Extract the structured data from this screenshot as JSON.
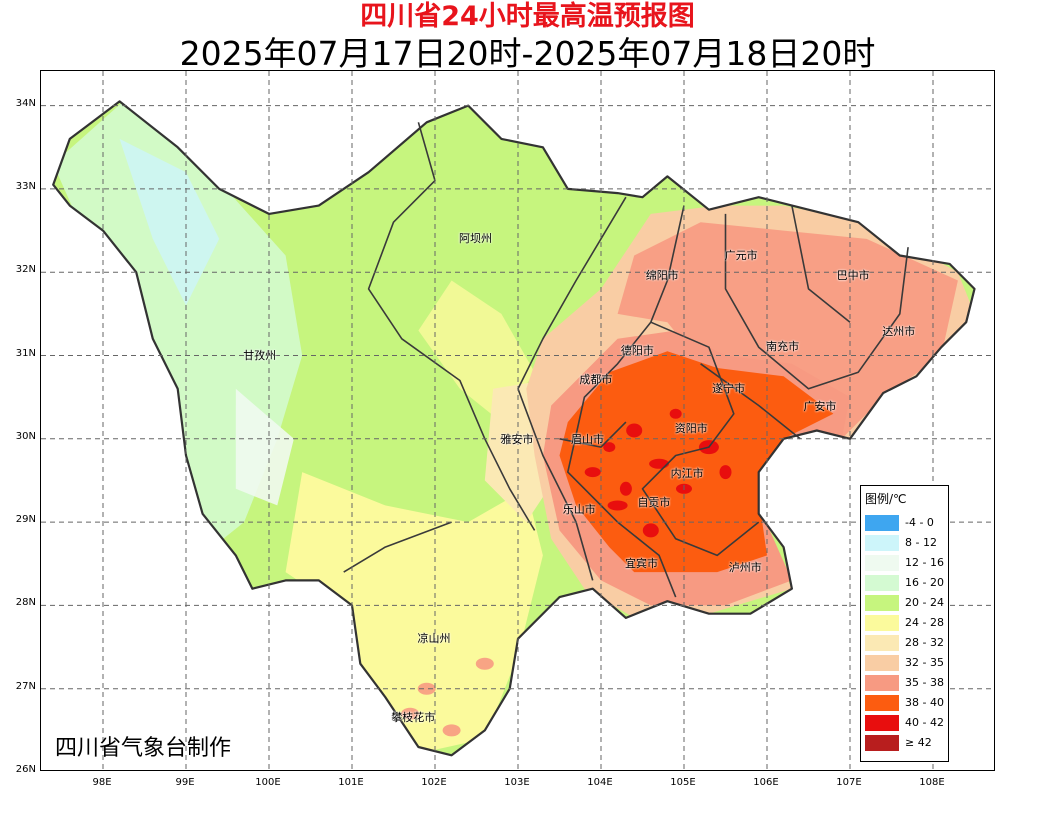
{
  "title": "四川省24小时最高温预报图",
  "subtitle": "2025年07月17日20时-2025年07月18日20时",
  "credit": "四川省气象台制作",
  "axes": {
    "x_ticks": [
      "98E",
      "99E",
      "100E",
      "101E",
      "102E",
      "103E",
      "104E",
      "105E",
      "106E",
      "107E",
      "108E"
    ],
    "y_ticks": [
      "34N",
      "33N",
      "32N",
      "31N",
      "30N",
      "29N",
      "28N",
      "27N",
      "26N"
    ],
    "lon_range": [
      97.3,
      108.8
    ],
    "lat_range": [
      26,
      34.4
    ]
  },
  "legend": {
    "title": "图例/℃",
    "items": [
      {
        "label": "-4 - 0",
        "color": "#3ea6f0"
      },
      {
        "label": "8 - 12",
        "color": "#cdf5fa"
      },
      {
        "label": "12 - 16",
        "color": "#effaf0"
      },
      {
        "label": "16 - 20",
        "color": "#d4fad2"
      },
      {
        "label": "20 - 24",
        "color": "#c6f57e"
      },
      {
        "label": "24 - 28",
        "color": "#fbfa9c"
      },
      {
        "label": "28 - 32",
        "color": "#fbe9b4"
      },
      {
        "label": "32 - 35",
        "color": "#f9cda4"
      },
      {
        "label": "35 - 38",
        "color": "#f79a82"
      },
      {
        "label": "38 - 40",
        "color": "#fc5c10"
      },
      {
        "label": "40 - 42",
        "color": "#e80e0e"
      },
      {
        "label": "≥ 42",
        "color": "#b81e1e"
      }
    ]
  },
  "cities": [
    {
      "name": "阿坝州",
      "lon": 102.5,
      "lat": 32.4
    },
    {
      "name": "甘孜州",
      "lon": 99.9,
      "lat": 31.0
    },
    {
      "name": "广元市",
      "lon": 105.7,
      "lat": 32.2
    },
    {
      "name": "巴中市",
      "lon": 107.05,
      "lat": 31.95
    },
    {
      "name": "绵阳市",
      "lon": 104.75,
      "lat": 31.95
    },
    {
      "name": "达州市",
      "lon": 107.6,
      "lat": 31.28
    },
    {
      "name": "德阳市",
      "lon": 104.45,
      "lat": 31.05
    },
    {
      "name": "南充市",
      "lon": 106.2,
      "lat": 31.1
    },
    {
      "name": "成都市",
      "lon": 103.95,
      "lat": 30.7
    },
    {
      "name": "遂宁市",
      "lon": 105.55,
      "lat": 30.6
    },
    {
      "name": "广安市",
      "lon": 106.65,
      "lat": 30.38
    },
    {
      "name": "资阳市",
      "lon": 105.1,
      "lat": 30.12
    },
    {
      "name": "雅安市",
      "lon": 103.0,
      "lat": 29.98
    },
    {
      "name": "眉山市",
      "lon": 103.85,
      "lat": 29.98
    },
    {
      "name": "内江市",
      "lon": 105.05,
      "lat": 29.58
    },
    {
      "name": "自贡市",
      "lon": 104.65,
      "lat": 29.23
    },
    {
      "name": "乐山市",
      "lon": 103.75,
      "lat": 29.15
    },
    {
      "name": "宜宾市",
      "lon": 104.5,
      "lat": 28.5
    },
    {
      "name": "泸州市",
      "lon": 105.75,
      "lat": 28.45
    },
    {
      "name": "凉山州",
      "lon": 102.0,
      "lat": 27.6
    },
    {
      "name": "攀枝花市",
      "lon": 101.75,
      "lat": 26.65
    }
  ]
}
